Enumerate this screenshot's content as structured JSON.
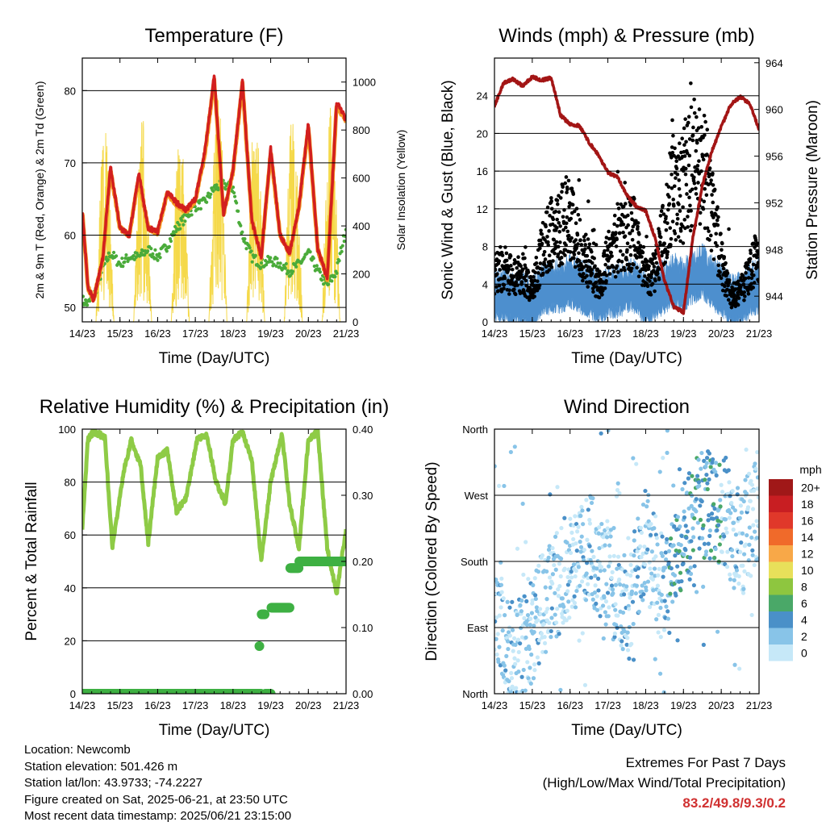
{
  "xticks": [
    "14/23",
    "15/23",
    "16/23",
    "17/23",
    "18/23",
    "19/23",
    "20/23",
    "21/23"
  ],
  "panels": {
    "temperature": {
      "title": "Temperature (F)",
      "xlabel": "Time (Day/UTC)",
      "ylabel_left": "2m & 9m T (Red, Orange) & 2m Td (Green)",
      "ylabel_right": "Solar Insolation (Yellow)",
      "yticks_left": [
        "50",
        "60",
        "70",
        "80"
      ],
      "yticks_right": [
        "0",
        "200",
        "400",
        "600",
        "800",
        "1000"
      ]
    },
    "winds": {
      "title": "Winds (mph) & Pressure (mb)",
      "xlabel": "Time (Day/UTC)",
      "ylabel_left": "Sonic Wind & Gust (Blue, Black)",
      "ylabel_right": "Station Pressure (Maroon)",
      "yticks_left": [
        "0",
        "4",
        "8",
        "12",
        "16",
        "20",
        "24"
      ],
      "yticks_right": [
        "944",
        "948",
        "952",
        "956",
        "960",
        "964"
      ]
    },
    "humidity": {
      "title": "Relative Humidity (%) & Precipitation (in)",
      "xlabel": "Time (Day/UTC)",
      "ylabel_left": "Percent & Total Rainfall",
      "yticks_left": [
        "0",
        "20",
        "40",
        "60",
        "80",
        "100"
      ],
      "yticks_right": [
        "0.00",
        "0.10",
        "0.20",
        "0.30",
        "0.40"
      ]
    },
    "direction": {
      "title": "Wind Direction",
      "xlabel": "Time (Day/UTC)",
      "ylabel_left": "Direction (Colored By Speed)",
      "yticks_left": [
        "North",
        "East",
        "South",
        "West",
        "North"
      ],
      "legend_title": "mph",
      "legend_labels": [
        "0",
        "2",
        "4",
        "6",
        "8",
        "10",
        "12",
        "14",
        "16",
        "18",
        "20+"
      ],
      "legend_colors": [
        "#c6e8f8",
        "#88c4e8",
        "#4a90c8",
        "#4aa868",
        "#8ec63f",
        "#e8e05a",
        "#f8a848",
        "#f06a2a",
        "#e0382a",
        "#c81e22",
        "#a01818"
      ]
    }
  },
  "colors": {
    "temp2m": "#d21f1f",
    "temp9m": "#f59a23",
    "dewpoint": "#4aab3a",
    "solar": "#f5d94a",
    "wind": "#4d8fce",
    "gust": "#000000",
    "pressure": "#a31515",
    "rh": "#8ecb46",
    "precip": "#3eb043"
  },
  "chart_data": [
    {
      "type": "line",
      "title": "Temperature (F)",
      "xlabel": "Time (Day/UTC)",
      "ylabel": "2m & 9m T (Red, Orange) & 2m Td (Green)",
      "y2label": "Solar Insolation (Yellow)",
      "ylim": [
        48,
        84.5
      ],
      "y2lim": [
        0,
        1100
      ],
      "x": [
        0,
        0.15,
        0.3,
        0.55,
        0.75,
        1.0,
        1.25,
        1.5,
        1.75,
        2.0,
        2.25,
        2.5,
        2.75,
        3.0,
        3.25,
        3.5,
        3.75,
        4.0,
        4.25,
        4.5,
        4.75,
        5.0,
        5.25,
        5.5,
        5.75,
        6.0,
        6.25,
        6.5,
        6.75,
        7.0
      ],
      "series": [
        {
          "name": "2m T",
          "values": [
            63.5,
            53.0,
            51.0,
            57.0,
            69.5,
            61.0,
            60.0,
            68.5,
            61.0,
            60.5,
            66.0,
            64.5,
            63.5,
            65.0,
            71.5,
            82.0,
            63.0,
            69.0,
            81.5,
            62.0,
            57.0,
            72.0,
            60.0,
            57.5,
            64.0,
            75.5,
            58.0,
            54.0,
            78.5,
            76.0
          ]
        },
        {
          "name": "9m T",
          "values": [
            63.3,
            52.8,
            51.0,
            56.8,
            69.0,
            61.0,
            60.0,
            68.0,
            61.0,
            60.3,
            65.8,
            64.3,
            63.3,
            64.8,
            71.0,
            81.5,
            62.8,
            68.8,
            81.0,
            62.0,
            57.0,
            71.5,
            60.0,
            57.5,
            63.8,
            75.0,
            58.0,
            54.0,
            78.0,
            75.8
          ]
        },
        {
          "name": "2m Td",
          "values": [
            51.0,
            50.5,
            51.5,
            55.5,
            57.5,
            56.0,
            57.0,
            57.0,
            58.0,
            57.0,
            58.5,
            61.0,
            62.5,
            64.0,
            64.5,
            66.5,
            67.0,
            66.5,
            60.0,
            57.0,
            56.0,
            56.5,
            56.0,
            55.0,
            56.0,
            57.5,
            55.0,
            53.0,
            55.0,
            61.0
          ]
        }
      ],
      "solar_daily_peaks": [
        900,
        800,
        850,
        820,
        980,
        940,
        920,
        950
      ]
    },
    {
      "type": "scatter",
      "title": "Winds (mph) & Pressure (mb)",
      "xlabel": "Time (Day/UTC)",
      "ylabel": "Sonic Wind & Gust (Blue, Black)",
      "y2label": "Station Pressure (Maroon)",
      "ylim": [
        0,
        28
      ],
      "y2lim": [
        941.8,
        964.4
      ],
      "x": [
        0,
        0.25,
        0.5,
        0.75,
        1.0,
        1.25,
        1.5,
        1.75,
        2.0,
        2.25,
        2.5,
        2.75,
        3.0,
        3.25,
        3.5,
        3.75,
        4.0,
        4.25,
        4.5,
        4.75,
        5.0,
        5.25,
        5.5,
        5.75,
        6.0,
        6.25,
        6.5,
        6.75,
        7.0
      ],
      "series": [
        {
          "name": "Sonic Wind",
          "values": [
            2.5,
            2.5,
            2.0,
            2.0,
            1.5,
            3.0,
            3.5,
            3.5,
            4.0,
            3.5,
            3.0,
            2.0,
            3.0,
            3.0,
            3.5,
            3.5,
            2.0,
            2.5,
            3.5,
            4.0,
            3.5,
            4.5,
            5.0,
            4.0,
            3.0,
            2.0,
            2.0,
            3.0,
            3.5
          ]
        },
        {
          "name": "Gust",
          "values": [
            5.0,
            5.5,
            4.5,
            5.0,
            3.0,
            7.0,
            9.0,
            10.0,
            10.5,
            8.0,
            6.0,
            3.5,
            6.5,
            8.0,
            9.0,
            9.0,
            4.5,
            5.0,
            9.5,
            14.0,
            14.0,
            16.0,
            15.5,
            12.0,
            6.0,
            2.5,
            3.0,
            5.0,
            7.0
          ]
        },
        {
          "name": "Station Pressure",
          "values": [
            960.3,
            962.3,
            962.6,
            962.0,
            962.8,
            962.5,
            962.7,
            959.5,
            958.7,
            958.6,
            957.2,
            956.1,
            954.6,
            954.2,
            952.7,
            951.7,
            951.3,
            949.0,
            945.3,
            943.1,
            942.6,
            949.0,
            953.5,
            956.4,
            958.5,
            960.4,
            961.1,
            960.5,
            958.3
          ]
        }
      ]
    },
    {
      "type": "line",
      "title": "Relative Humidity (%) & Precipitation (in)",
      "xlabel": "Time (Day/UTC)",
      "ylabel": "Percent & Total Rainfall",
      "ylim": [
        0,
        100
      ],
      "y2lim": [
        0,
        0.4
      ],
      "x": [
        0,
        0.15,
        0.3,
        0.6,
        0.8,
        1.1,
        1.3,
        1.55,
        1.75,
        2.0,
        2.25,
        2.5,
        2.75,
        3.05,
        3.3,
        3.55,
        3.8,
        4.0,
        4.25,
        4.5,
        4.75,
        5.0,
        5.3,
        5.5,
        5.75,
        6.0,
        6.25,
        6.5,
        6.75,
        7.0
      ],
      "series": [
        {
          "name": "Relative Humidity",
          "values": [
            63,
            96,
            99,
            97,
            55,
            84,
            96,
            86,
            57,
            89,
            92,
            69,
            74,
            96,
            98,
            80,
            72,
            96,
            99,
            88,
            50,
            80,
            98,
            72,
            55,
            96,
            99,
            55,
            38,
            62
          ]
        },
        {
          "name": "Total Precipitation",
          "values": [
            0.0,
            0.0,
            0.0,
            0.0,
            0.0,
            0.0,
            0.0,
            0.0,
            0.0,
            0.0,
            0.0,
            0.0,
            0.0,
            0.0,
            0.0,
            0.0,
            0.0,
            0.0,
            0.0,
            0.0,
            0.12,
            0.13,
            0.13,
            0.19,
            0.2,
            0.2,
            0.2,
            0.2,
            0.2,
            0.2
          ]
        }
      ]
    },
    {
      "type": "scatter",
      "title": "Wind Direction",
      "xlabel": "Time (Day/UTC)",
      "ylabel": "Direction (Colored By Speed)",
      "ylim": [
        0,
        360
      ],
      "x": [
        0.0,
        0.5,
        1.0,
        1.5,
        2.0,
        2.5,
        3.0,
        3.5,
        4.0,
        4.5,
        5.0,
        5.5,
        6.0,
        6.5,
        7.0
      ],
      "series": [
        {
          "name": "Wind Direction",
          "values": [
            135,
            50,
            90,
            140,
            175,
            200,
            160,
            110,
            210,
            130,
            220,
            260,
            250,
            200,
            260
          ]
        }
      ],
      "legend_unit": "mph",
      "legend_levels": [
        "0",
        "2",
        "4",
        "6",
        "8",
        "10",
        "12",
        "14",
        "16",
        "18",
        "20+"
      ]
    }
  ],
  "footer": {
    "location": "Location: Newcomb",
    "elevation": "Station elevation: 501.426 m",
    "latlon": "Station lat/lon: 43.9733; -74.2227",
    "created": "Figure created on Sat, 2025-06-21, at 23:50 UTC",
    "latest": "Most recent data timestamp: 2025/06/21 23:15:00"
  },
  "extremes": {
    "title": "Extremes For Past 7 Days",
    "subtitle": "(High/Low/Max Wind/Total Precipitation)",
    "values": "83.2/49.8/9.3/0.2"
  }
}
